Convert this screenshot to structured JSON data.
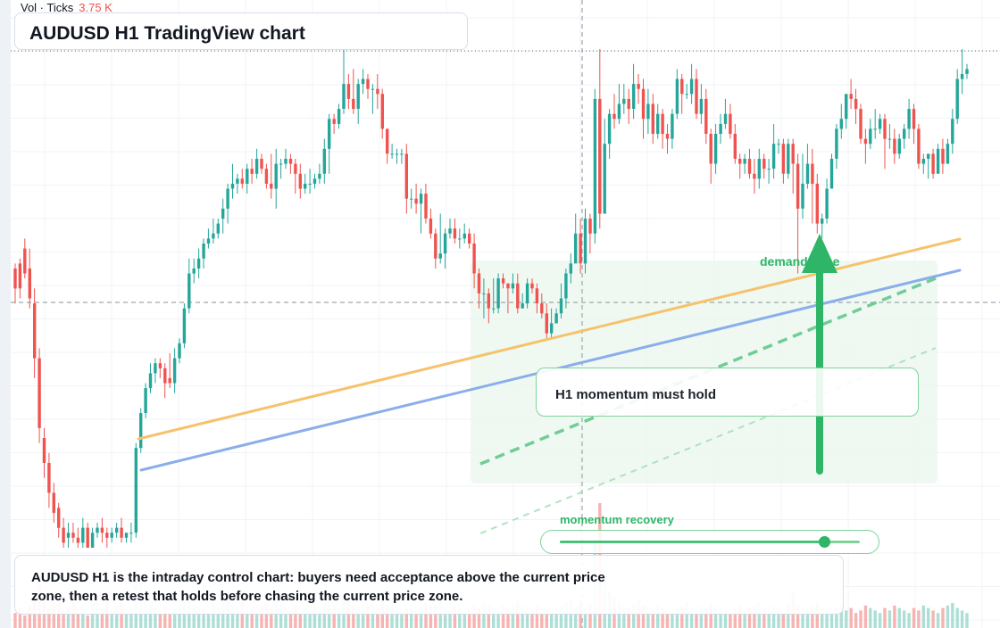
{
  "header": {
    "vol_label": "Vol · Ticks",
    "vol_value": "3.75 K",
    "title": "AUDUSD H1 TradingView chart"
  },
  "annotations": {
    "callout": "H1 momentum must hold",
    "zone_label": "demand zone",
    "momentum_label": "momentum recovery",
    "momentum_level": 0.88,
    "summary": "AUDUSD H1 is the intraday control chart: buyers need acceptance above the current price zone, then a retest that holds before chasing the current price zone."
  },
  "colors": {
    "up": "#26a69a",
    "down": "#ef5350",
    "volume_up": "#9fd9cf",
    "volume_down": "#f5a7a5",
    "support_line": "#f6c26b",
    "trend_line": "#8aaeea",
    "accent": "#2eb567",
    "zone_fill": "#eaf7ee"
  },
  "chart_data": {
    "type": "candlestick",
    "y_scale": "0 = chart low, 100 = chart high (no price axis printed)",
    "ohlc": [
      [
        56,
        52,
        57,
        49
      ],
      [
        57,
        52,
        58,
        50
      ],
      [
        60,
        55,
        62,
        54
      ],
      [
        56,
        50,
        60,
        48
      ],
      [
        49,
        38,
        52,
        34
      ],
      [
        38,
        24,
        40,
        21
      ],
      [
        22,
        17,
        24,
        14
      ],
      [
        17,
        11,
        19,
        8
      ],
      [
        11,
        7,
        13,
        5
      ],
      [
        8,
        4,
        9,
        2
      ],
      [
        4,
        1,
        6,
        0
      ],
      [
        2,
        3,
        5,
        0
      ],
      [
        3,
        2,
        5,
        1
      ],
      [
        2,
        1,
        4,
        0
      ],
      [
        1,
        4,
        6,
        0
      ],
      [
        4,
        0,
        5,
        0
      ],
      [
        0,
        3,
        4,
        0
      ],
      [
        3,
        4,
        5,
        2
      ],
      [
        4,
        3,
        6,
        1
      ],
      [
        3,
        2,
        4,
        0
      ],
      [
        2,
        3,
        4,
        1
      ],
      [
        3,
        4,
        5,
        2
      ],
      [
        4,
        2,
        6,
        1
      ],
      [
        2,
        3,
        3,
        1
      ],
      [
        3,
        3,
        5,
        1
      ],
      [
        3,
        20,
        21,
        2
      ],
      [
        20,
        27,
        28,
        19
      ],
      [
        27,
        32,
        33,
        26
      ],
      [
        32,
        35,
        37,
        31
      ],
      [
        35,
        37,
        38,
        33
      ],
      [
        37,
        36,
        38,
        34
      ],
      [
        36,
        33,
        37,
        30
      ],
      [
        34,
        33,
        39,
        32
      ],
      [
        33,
        38,
        40,
        31
      ],
      [
        38,
        41,
        42,
        37
      ],
      [
        41,
        48,
        49,
        40
      ],
      [
        48,
        55,
        58,
        47
      ],
      [
        55,
        56,
        58,
        53
      ],
      [
        56,
        58,
        60,
        54
      ],
      [
        58,
        61,
        62,
        56
      ],
      [
        61,
        62,
        64,
        60
      ],
      [
        62,
        63,
        66,
        61
      ],
      [
        63,
        65,
        66,
        62
      ],
      [
        66,
        68,
        70,
        63
      ],
      [
        68,
        72,
        73,
        65
      ],
      [
        72,
        73,
        77,
        70
      ],
      [
        73,
        74,
        75,
        71
      ],
      [
        74,
        73,
        76,
        72
      ],
      [
        73,
        76,
        77,
        71
      ],
      [
        76,
        75,
        78,
        73
      ],
      [
        75,
        78,
        80,
        74
      ],
      [
        78,
        76,
        79,
        75
      ],
      [
        76,
        73,
        77,
        72
      ],
      [
        73,
        72,
        79,
        70
      ],
      [
        72,
        77,
        80,
        68
      ],
      [
        77,
        77,
        78,
        74
      ],
      [
        77,
        78,
        80,
        76
      ],
      [
        78,
        77,
        79,
        75
      ],
      [
        77,
        75,
        78,
        71
      ],
      [
        75,
        72,
        77,
        70
      ],
      [
        72,
        73,
        75,
        71
      ],
      [
        73,
        73,
        76,
        71
      ],
      [
        73,
        74,
        75,
        72
      ],
      [
        74,
        75,
        77,
        73
      ],
      [
        75,
        80,
        82,
        73
      ],
      [
        80,
        86,
        87,
        75
      ],
      [
        86,
        85,
        87,
        83
      ],
      [
        85,
        88,
        89,
        84
      ],
      [
        88,
        93,
        100,
        87
      ],
      [
        93,
        90,
        95,
        88
      ],
      [
        90,
        88,
        96,
        87
      ],
      [
        88,
        93,
        94,
        85
      ],
      [
        93,
        94,
        96,
        91
      ],
      [
        94,
        92,
        95,
        90
      ],
      [
        92,
        92,
        93,
        87
      ],
      [
        92,
        91,
        95,
        88
      ],
      [
        91,
        84,
        92,
        82
      ],
      [
        84,
        79,
        84,
        77
      ],
      [
        79,
        79,
        81,
        78
      ],
      [
        79,
        79,
        80,
        77
      ],
      [
        79,
        79,
        80,
        77
      ],
      [
        79,
        70,
        81,
        67
      ],
      [
        70,
        70,
        72,
        68
      ],
      [
        70,
        69,
        73,
        67
      ],
      [
        69,
        71,
        72,
        63
      ],
      [
        71,
        66,
        73,
        65
      ],
      [
        66,
        63,
        68,
        62
      ],
      [
        63,
        58,
        64,
        56
      ],
      [
        58,
        59,
        67,
        57
      ],
      [
        59,
        63,
        64,
        56
      ],
      [
        63,
        64,
        66,
        62
      ],
      [
        64,
        62,
        66,
        61
      ],
      [
        62,
        62,
        64,
        60
      ],
      [
        62,
        63,
        65,
        61
      ],
      [
        63,
        61,
        64,
        60
      ],
      [
        61,
        55,
        63,
        52
      ],
      [
        55,
        51,
        56,
        48
      ],
      [
        51,
        51,
        54,
        46
      ],
      [
        51,
        48,
        52,
        45
      ],
      [
        48,
        48,
        54,
        47
      ],
      [
        48,
        54,
        55,
        47
      ],
      [
        54,
        53,
        55,
        52
      ],
      [
        53,
        52,
        53,
        47
      ],
      [
        52,
        53,
        55,
        51
      ],
      [
        53,
        48,
        55,
        47
      ],
      [
        48,
        49,
        51,
        48
      ],
      [
        49,
        53,
        54,
        48
      ],
      [
        53,
        52,
        54,
        51
      ],
      [
        52,
        49,
        53,
        47
      ],
      [
        49,
        47,
        51,
        46
      ],
      [
        47,
        43,
        49,
        42
      ],
      [
        43,
        45,
        48,
        42
      ],
      [
        45,
        47,
        48,
        45
      ],
      [
        47,
        50,
        53,
        46
      ],
      [
        50,
        55,
        56,
        48
      ],
      [
        55,
        57,
        59,
        53
      ],
      [
        57,
        63,
        67,
        57
      ],
      [
        63,
        57,
        66,
        55
      ],
      [
        57,
        66,
        68,
        55
      ],
      [
        66,
        63,
        67,
        59
      ],
      [
        63,
        90,
        92,
        61
      ],
      [
        90,
        67,
        100,
        64
      ],
      [
        67,
        81,
        86,
        76
      ],
      [
        81,
        87,
        88,
        78
      ],
      [
        87,
        86,
        91,
        84
      ],
      [
        86,
        89,
        93,
        85
      ],
      [
        89,
        90,
        93,
        87
      ],
      [
        90,
        88,
        92,
        85
      ],
      [
        88,
        93,
        97,
        86
      ],
      [
        93,
        92,
        95,
        89
      ],
      [
        92,
        86,
        94,
        82
      ],
      [
        86,
        89,
        92,
        83
      ],
      [
        89,
        83,
        91,
        81
      ],
      [
        83,
        87,
        89,
        82
      ],
      [
        87,
        83,
        88,
        80
      ],
      [
        83,
        82,
        85,
        79
      ],
      [
        82,
        87,
        88,
        80
      ],
      [
        87,
        94,
        96,
        86
      ],
      [
        94,
        91,
        95,
        87
      ],
      [
        91,
        91,
        93,
        90
      ],
      [
        91,
        94,
        97,
        89
      ],
      [
        94,
        87,
        96,
        86
      ],
      [
        87,
        90,
        93,
        85
      ],
      [
        90,
        83,
        92,
        81
      ],
      [
        83,
        77,
        84,
        73
      ],
      [
        77,
        83,
        85,
        75
      ],
      [
        83,
        85,
        87,
        81
      ],
      [
        85,
        87,
        90,
        84
      ],
      [
        87,
        83,
        89,
        82
      ],
      [
        83,
        78,
        85,
        77
      ],
      [
        78,
        77,
        79,
        74
      ],
      [
        77,
        78,
        79,
        75
      ],
      [
        78,
        75,
        80,
        74
      ],
      [
        75,
        74,
        78,
        71
      ],
      [
        74,
        78,
        80,
        72
      ],
      [
        78,
        76,
        79,
        74
      ],
      [
        76,
        76,
        78,
        73
      ],
      [
        76,
        81,
        85,
        74
      ],
      [
        81,
        81,
        82,
        79
      ],
      [
        81,
        75,
        82,
        73
      ],
      [
        75,
        81,
        82,
        74
      ],
      [
        81,
        77,
        82,
        71
      ],
      [
        77,
        68,
        79,
        55
      ],
      [
        68,
        73,
        79,
        66
      ],
      [
        73,
        77,
        81,
        72
      ],
      [
        77,
        73,
        80,
        65
      ],
      [
        73,
        65,
        75,
        63
      ],
      [
        65,
        66,
        67,
        62
      ],
      [
        66,
        72,
        74,
        65
      ],
      [
        72,
        78,
        79,
        72
      ],
      [
        78,
        84,
        85,
        76
      ],
      [
        84,
        86,
        89,
        82
      ],
      [
        86,
        91,
        91,
        84
      ],
      [
        91,
        90,
        94,
        88
      ],
      [
        90,
        88,
        92,
        85
      ],
      [
        88,
        82,
        89,
        81
      ],
      [
        82,
        81,
        84,
        77
      ],
      [
        81,
        84,
        86,
        80
      ],
      [
        84,
        84,
        88,
        82
      ],
      [
        84,
        86,
        87,
        83
      ],
      [
        86,
        82,
        87,
        76
      ],
      [
        82,
        82,
        85,
        80
      ],
      [
        82,
        79,
        84,
        77
      ],
      [
        79,
        82,
        83,
        78
      ],
      [
        82,
        84,
        85,
        80
      ],
      [
        84,
        88,
        90,
        82
      ],
      [
        88,
        84,
        89,
        81
      ],
      [
        84,
        77,
        85,
        76
      ],
      [
        77,
        78,
        79,
        75
      ],
      [
        78,
        79,
        79,
        74
      ],
      [
        79,
        75,
        80,
        74
      ],
      [
        75,
        80,
        81,
        77
      ],
      [
        80,
        77,
        82,
        75
      ],
      [
        77,
        81,
        82,
        77
      ],
      [
        81,
        86,
        88,
        79
      ],
      [
        86,
        94,
        96,
        85
      ],
      [
        94,
        95,
        100,
        91
      ],
      [
        95,
        96,
        97,
        94
      ]
    ],
    "volume": [
      6,
      8,
      5,
      9,
      14,
      20,
      12,
      8,
      10,
      11,
      7,
      9,
      15,
      6,
      8,
      5,
      12,
      13,
      8,
      11,
      7,
      9,
      10,
      6,
      8,
      25,
      18,
      12,
      10,
      8,
      7,
      9,
      6,
      8,
      10,
      11,
      13,
      9,
      8,
      7,
      6,
      9,
      8,
      10,
      12,
      9,
      8,
      11,
      7,
      8,
      6,
      9,
      10,
      8,
      12,
      9,
      8,
      7,
      9,
      6,
      8,
      7,
      9,
      8,
      10,
      12,
      9,
      8,
      14,
      11,
      9,
      8,
      7,
      9,
      10,
      8,
      11,
      9,
      8,
      7,
      6,
      8,
      9,
      7,
      8,
      10,
      8,
      9,
      11,
      8,
      7,
      9,
      8,
      6,
      7,
      9,
      8,
      10,
      9,
      8,
      7,
      9,
      8,
      10,
      11,
      9,
      7,
      8,
      9,
      8,
      7,
      6,
      8,
      9,
      10,
      12,
      9,
      11,
      8,
      10,
      35,
      50,
      20,
      15,
      12,
      10,
      9,
      8,
      10,
      11,
      9,
      8,
      7,
      9,
      8,
      7,
      6,
      8,
      9,
      10,
      8,
      7,
      9,
      8,
      10,
      9,
      8,
      7,
      6,
      8,
      9,
      7,
      8,
      9,
      10,
      8,
      7,
      9,
      8,
      6,
      10,
      14,
      9,
      8,
      7,
      9,
      10,
      8,
      7,
      6,
      8,
      9,
      7,
      8,
      6,
      7,
      9,
      8,
      7,
      6,
      8,
      7,
      9,
      8,
      7,
      6,
      8,
      7,
      9,
      8,
      7,
      6,
      8,
      9,
      10,
      8,
      7,
      6
    ]
  }
}
